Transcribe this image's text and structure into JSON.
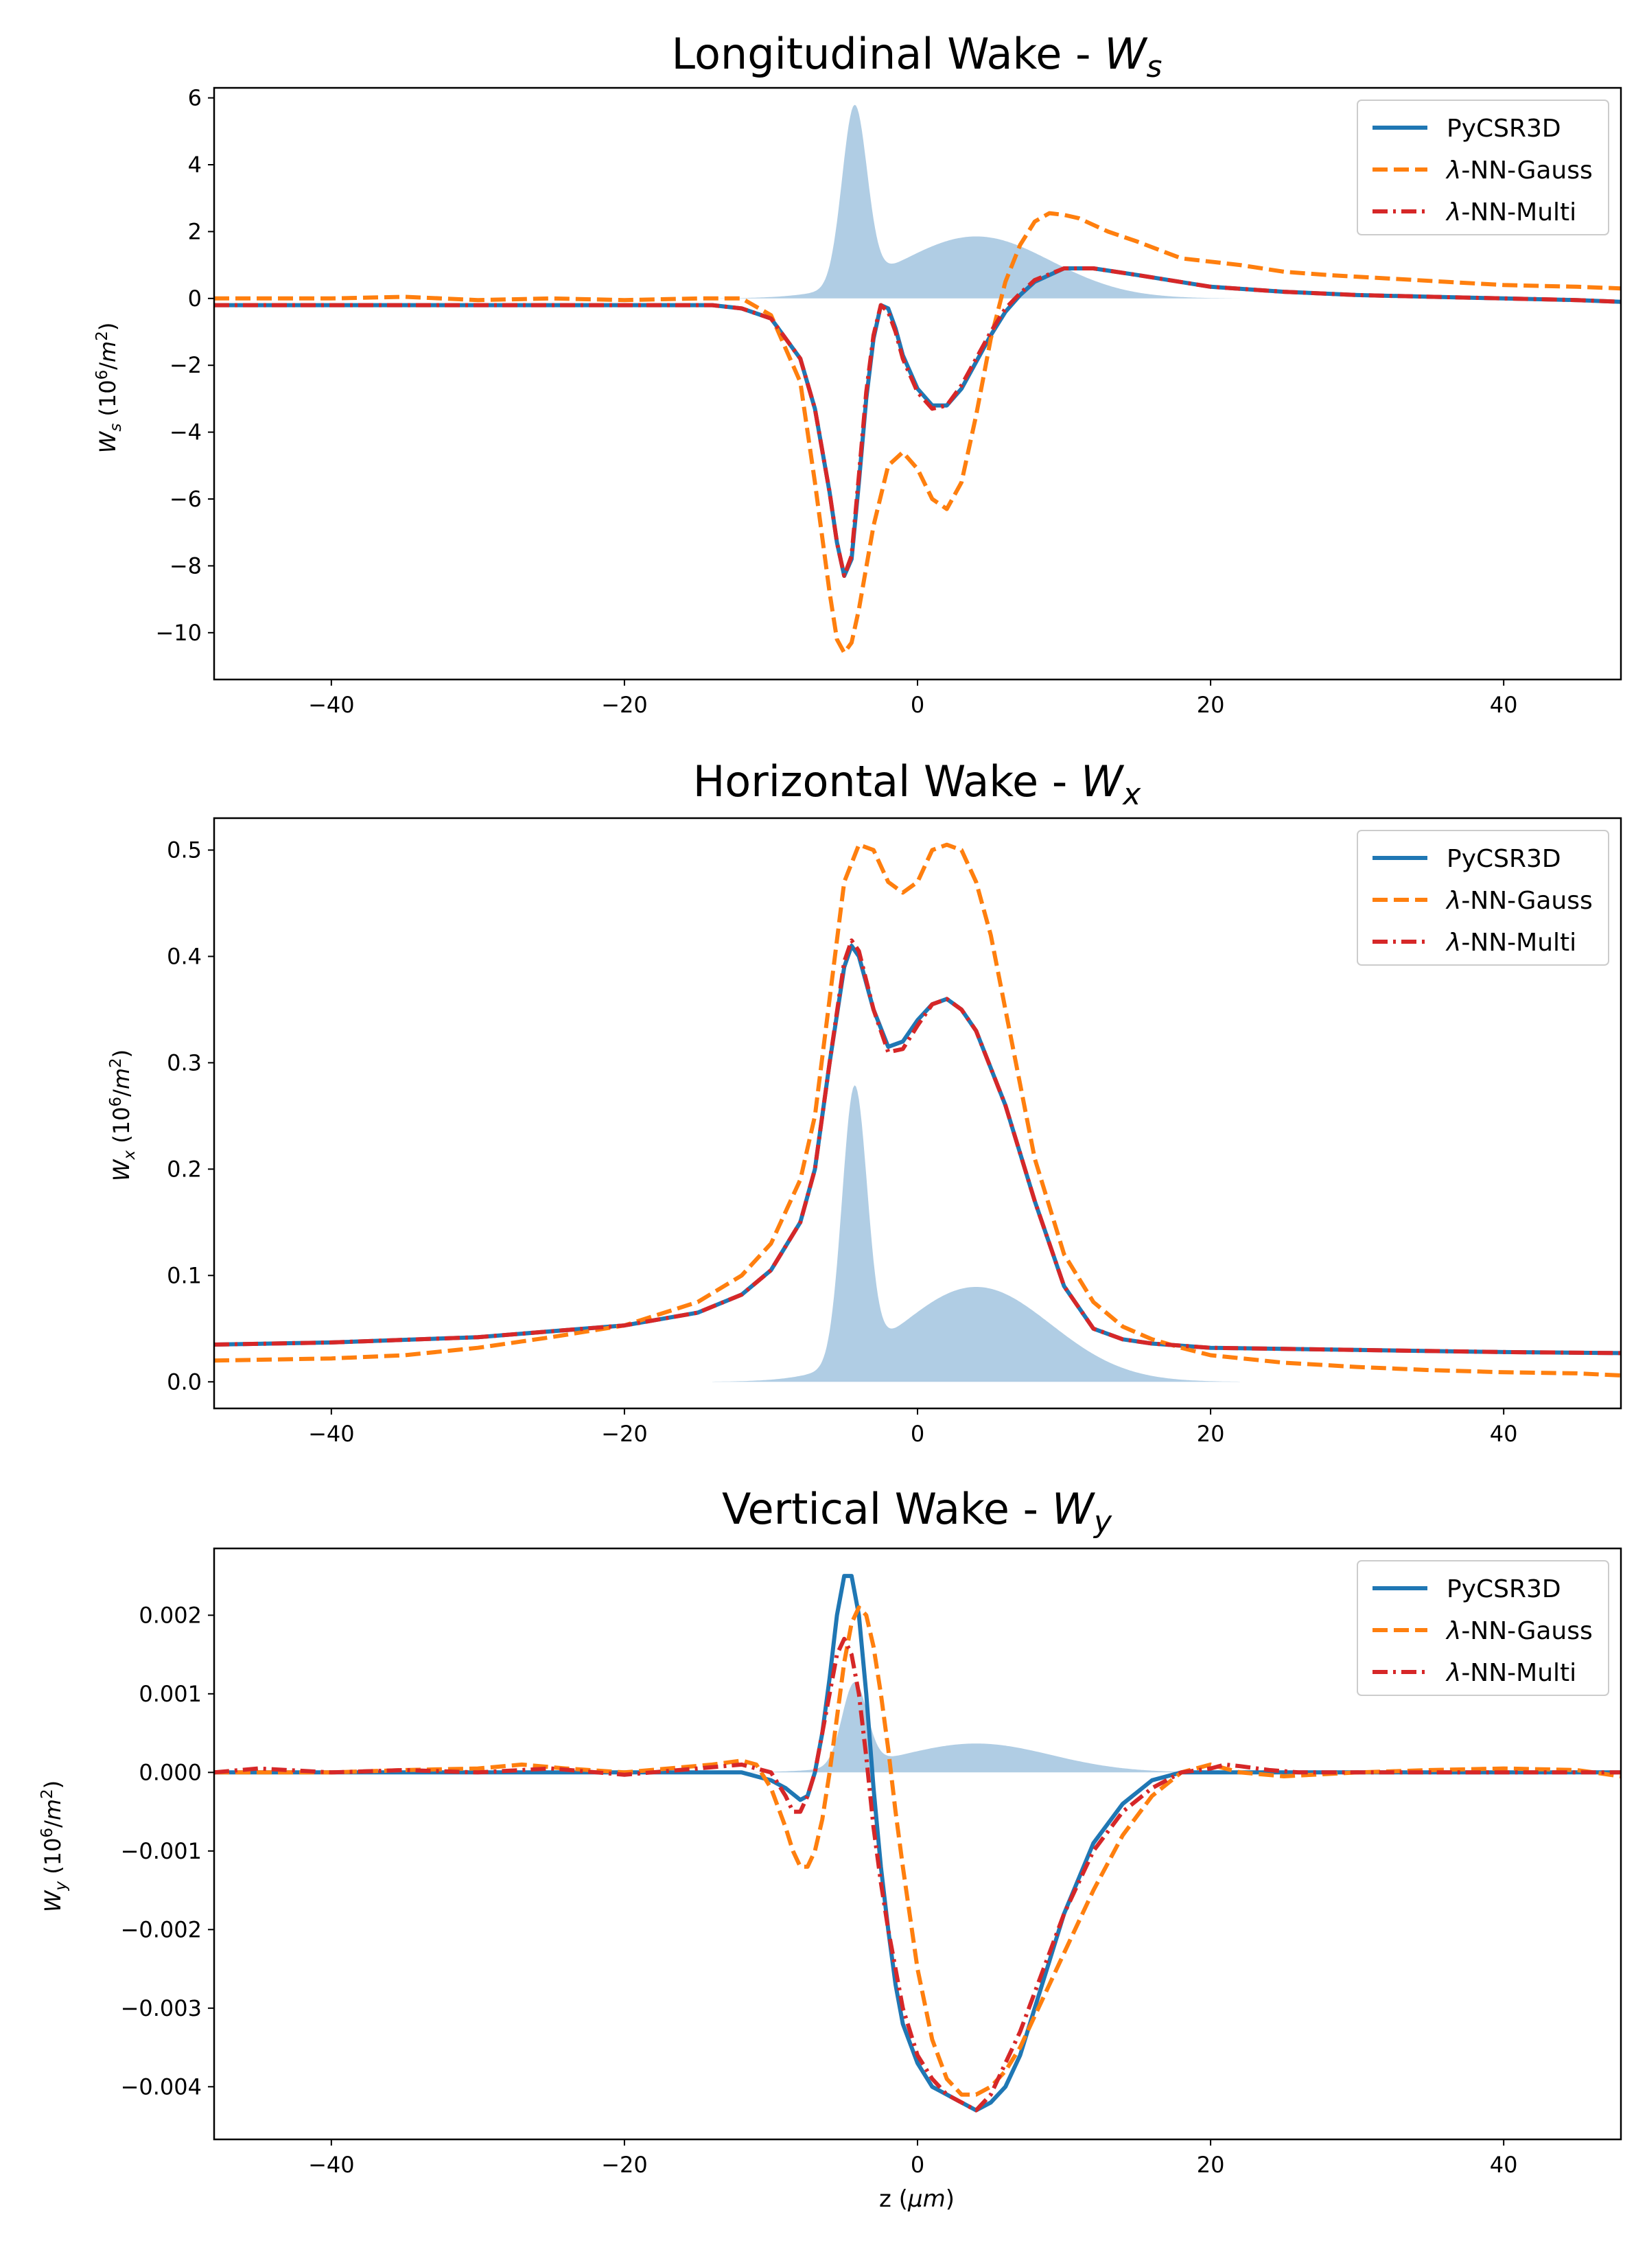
{
  "chart_data": [
    {
      "type": "line",
      "title": "Longitudinal Wake - ",
      "title_symbol": "W",
      "title_sub": "s",
      "xlabel": "",
      "ylabel": "W_s (10^6/m^2)",
      "ylabel_parts": {
        "sym": "W",
        "sub": "s",
        "unit_pre": " (10",
        "sup": "6",
        "unit_mid": "/",
        "unit_m": "m",
        "unit_sup": "2",
        "unit_post": ")"
      },
      "xlim": [
        -48,
        48
      ],
      "ylim": [
        -11.4,
        6.3
      ],
      "xticks": [
        -40,
        -20,
        0,
        20,
        40
      ],
      "xtick_labels": [
        "−40",
        "−20",
        "0",
        "20",
        "40"
      ],
      "yticks": [
        6,
        4,
        2,
        0,
        -2,
        -4,
        -6,
        -8,
        -10
      ],
      "ytick_labels": [
        "6",
        "4",
        "2",
        "0",
        "−2",
        "−4",
        "−6",
        "−8",
        "−10"
      ],
      "legend": {
        "position": "top-right",
        "entries": [
          "PyCSR3D",
          "λ-NN-Gauss",
          "λ-NN-Multi"
        ]
      },
      "profile_scale": 5.3,
      "series": [
        {
          "name": "PyCSR3D",
          "color": "#1f77b4",
          "style": "solid",
          "x": [
            -48,
            -30,
            -20,
            -14,
            -12,
            -10,
            -8,
            -7,
            -6,
            -5.5,
            -5,
            -4.5,
            -4,
            -3.5,
            -3,
            -2.5,
            -2,
            -1.5,
            -1,
            0,
            1,
            2,
            3,
            4,
            5,
            6,
            7,
            8,
            10,
            12,
            15,
            20,
            25,
            30,
            35,
            40,
            45,
            48
          ],
          "y": [
            -0.2,
            -0.2,
            -0.2,
            -0.2,
            -0.3,
            -0.6,
            -1.8,
            -3.3,
            -5.8,
            -7.3,
            -8.3,
            -7.8,
            -5.5,
            -3,
            -1.2,
            -0.2,
            -0.3,
            -0.9,
            -1.7,
            -2.7,
            -3.2,
            -3.2,
            -2.7,
            -1.9,
            -1.1,
            -0.4,
            0.1,
            0.5,
            0.9,
            0.9,
            0.7,
            0.35,
            0.2,
            0.1,
            0.05,
            0,
            -0.05,
            -0.1
          ]
        },
        {
          "name": "λ-NN-Gauss",
          "color": "#ff7f0e",
          "style": "dashed",
          "x": [
            -48,
            -40,
            -35,
            -30,
            -25,
            -20,
            -15,
            -12,
            -10,
            -8,
            -7,
            -6,
            -5.5,
            -5,
            -4.5,
            -4,
            -3,
            -2,
            -1,
            0,
            1,
            2,
            3,
            4,
            5,
            6,
            7,
            8,
            9,
            10,
            11,
            12,
            13,
            15,
            18,
            22,
            25,
            28,
            32,
            36,
            40,
            45,
            48
          ],
          "y": [
            0,
            0,
            0.05,
            -0.05,
            0,
            -0.05,
            0,
            0,
            -0.5,
            -2.5,
            -5.5,
            -8.8,
            -10.2,
            -10.6,
            -10.3,
            -9.3,
            -6.8,
            -5,
            -4.6,
            -5.1,
            -6,
            -6.3,
            -5.5,
            -3.5,
            -1.2,
            0.5,
            1.6,
            2.3,
            2.55,
            2.5,
            2.4,
            2.2,
            2,
            1.7,
            1.2,
            1,
            0.8,
            0.7,
            0.6,
            0.5,
            0.4,
            0.35,
            0.3
          ]
        },
        {
          "name": "λ-NN-Multi",
          "color": "#d62728",
          "style": "dashdot",
          "x": [
            -48,
            -30,
            -20,
            -14,
            -12,
            -10,
            -8,
            -7,
            -6,
            -5.5,
            -5,
            -4.5,
            -4,
            -3.5,
            -3,
            -2.5,
            -2,
            -1.5,
            -1,
            0,
            1,
            2,
            3,
            4,
            5,
            6,
            7,
            8,
            10,
            12,
            15,
            20,
            25,
            30,
            35,
            40,
            45,
            48
          ],
          "y": [
            -0.2,
            -0.2,
            -0.2,
            -0.2,
            -0.3,
            -0.6,
            -1.8,
            -3.3,
            -5.8,
            -7.3,
            -8.3,
            -7.7,
            -5.3,
            -2.8,
            -1.1,
            -0.2,
            -0.4,
            -1,
            -1.8,
            -2.8,
            -3.3,
            -3.2,
            -2.6,
            -1.8,
            -1,
            -0.3,
            0.15,
            0.55,
            0.9,
            0.9,
            0.7,
            0.35,
            0.2,
            0.1,
            0.05,
            0,
            -0.05,
            -0.1
          ]
        }
      ]
    },
    {
      "type": "line",
      "title": "Horizontal Wake - ",
      "title_symbol": "W",
      "title_sub": "x",
      "xlabel": "",
      "ylabel": "W_x (10^6/m^2)",
      "ylabel_parts": {
        "sym": "W",
        "sub": "x",
        "unit_pre": " (10",
        "sup": "6",
        "unit_mid": "/",
        "unit_m": "m",
        "unit_sup": "2",
        "unit_post": ")"
      },
      "xlim": [
        -48,
        48
      ],
      "ylim": [
        -0.025,
        0.53
      ],
      "xticks": [
        -40,
        -20,
        0,
        20,
        40
      ],
      "xtick_labels": [
        "−40",
        "−20",
        "0",
        "20",
        "40"
      ],
      "yticks": [
        0.5,
        0.4,
        0.3,
        0.2,
        0.1,
        0.0
      ],
      "ytick_labels": [
        "0.5",
        "0.4",
        "0.3",
        "0.2",
        "0.1",
        "0.0"
      ],
      "legend": {
        "position": "top-right",
        "entries": [
          "PyCSR3D",
          "λ-NN-Gauss",
          "λ-NN-Multi"
        ]
      },
      "profile_scale": 0.255,
      "series": [
        {
          "name": "PyCSR3D",
          "color": "#1f77b4",
          "style": "solid",
          "x": [
            -48,
            -40,
            -30,
            -20,
            -15,
            -12,
            -10,
            -8,
            -7,
            -6,
            -5,
            -4.5,
            -4,
            -3,
            -2,
            -1,
            0,
            1,
            2,
            3,
            4,
            6,
            8,
            10,
            12,
            14,
            16,
            20,
            30,
            40,
            48
          ],
          "y": [
            0.035,
            0.037,
            0.042,
            0.053,
            0.065,
            0.082,
            0.105,
            0.15,
            0.2,
            0.3,
            0.39,
            0.41,
            0.4,
            0.35,
            0.315,
            0.32,
            0.34,
            0.355,
            0.36,
            0.35,
            0.33,
            0.26,
            0.17,
            0.09,
            0.05,
            0.04,
            0.036,
            0.032,
            0.03,
            0.028,
            0.027
          ]
        },
        {
          "name": "λ-NN-Gauss",
          "color": "#ff7f0e",
          "style": "dashed",
          "x": [
            -48,
            -40,
            -35,
            -30,
            -25,
            -20,
            -15,
            -12,
            -10,
            -8,
            -7,
            -6,
            -5,
            -4,
            -3,
            -2,
            -1,
            0,
            1,
            2,
            3,
            4,
            5,
            6,
            8,
            10,
            12,
            14,
            16,
            18,
            20,
            25,
            30,
            35,
            40,
            45,
            48
          ],
          "y": [
            0.02,
            0.022,
            0.025,
            0.032,
            0.042,
            0.053,
            0.075,
            0.1,
            0.13,
            0.19,
            0.25,
            0.36,
            0.47,
            0.505,
            0.5,
            0.47,
            0.46,
            0.47,
            0.5,
            0.505,
            0.5,
            0.47,
            0.42,
            0.35,
            0.21,
            0.12,
            0.075,
            0.052,
            0.04,
            0.032,
            0.025,
            0.018,
            0.014,
            0.011,
            0.009,
            0.008,
            0.006
          ]
        },
        {
          "name": "λ-NN-Multi",
          "color": "#d62728",
          "style": "dashdot",
          "x": [
            -48,
            -40,
            -30,
            -20,
            -15,
            -12,
            -10,
            -8,
            -7,
            -6,
            -5,
            -4.5,
            -4,
            -3,
            -2,
            -1,
            0,
            1,
            2,
            3,
            4,
            6,
            8,
            10,
            12,
            14,
            16,
            20,
            30,
            40,
            48
          ],
          "y": [
            0.035,
            0.037,
            0.042,
            0.053,
            0.065,
            0.082,
            0.105,
            0.15,
            0.2,
            0.3,
            0.395,
            0.415,
            0.405,
            0.35,
            0.31,
            0.313,
            0.335,
            0.355,
            0.36,
            0.35,
            0.33,
            0.26,
            0.17,
            0.09,
            0.05,
            0.04,
            0.036,
            0.032,
            0.03,
            0.028,
            0.027
          ]
        }
      ]
    },
    {
      "type": "line",
      "title": "Vertical Wake - ",
      "title_symbol": "W",
      "title_sub": "y",
      "xlabel": "z (μm)",
      "xlabel_parts": {
        "pre": "z (",
        "sym": "μm",
        "post": ")"
      },
      "ylabel": "W_y (10^6/m^2)",
      "ylabel_parts": {
        "sym": "W",
        "sub": "y",
        "unit_pre": " (10",
        "sup": "6",
        "unit_mid": "/",
        "unit_m": "m",
        "unit_sup": "2",
        "unit_post": ")"
      },
      "xlim": [
        -48,
        48
      ],
      "ylim": [
        -0.00467,
        0.00285
      ],
      "xticks": [
        -40,
        -20,
        0,
        20,
        40
      ],
      "xtick_labels": [
        "−40",
        "−20",
        "0",
        "20",
        "40"
      ],
      "yticks": [
        0.002,
        0.001,
        0.0,
        -0.001,
        -0.002,
        -0.003,
        -0.004
      ],
      "ytick_labels": [
        "0.002",
        "0.001",
        "0.000",
        "−0.001",
        "−0.002",
        "−0.003",
        "−0.004"
      ],
      "legend": {
        "position": "top-right",
        "entries": [
          "PyCSR3D",
          "λ-NN-Gauss",
          "λ-NN-Multi"
        ]
      },
      "profile_scale": 0.00105,
      "series": [
        {
          "name": "PyCSR3D",
          "color": "#1f77b4",
          "style": "solid",
          "x": [
            -48,
            -30,
            -20,
            -15,
            -12,
            -10,
            -9,
            -8,
            -7.5,
            -7,
            -6.5,
            -6,
            -5.5,
            -5,
            -4.5,
            -4,
            -3.5,
            -3,
            -2.5,
            -2,
            -1.5,
            -1,
            0,
            1,
            2,
            3,
            4,
            5,
            6,
            7,
            8,
            9,
            10,
            12,
            14,
            16,
            18,
            20,
            25,
            30,
            40,
            48
          ],
          "y": [
            0,
            0,
            0,
            0,
            0,
            -0.0001,
            -0.0002,
            -0.00035,
            -0.0003,
            0,
            0.0005,
            0.0012,
            0.002,
            0.0025,
            0.0025,
            0.002,
            0.001,
            -0.0002,
            -0.0012,
            -0.002,
            -0.0027,
            -0.0032,
            -0.0037,
            -0.004,
            -0.0041,
            -0.0042,
            -0.0043,
            -0.0042,
            -0.004,
            -0.0036,
            -0.003,
            -0.0024,
            -0.0018,
            -0.0009,
            -0.0004,
            -0.0001,
            0,
            0,
            0,
            0,
            0,
            0
          ]
        },
        {
          "name": "λ-NN-Gauss",
          "color": "#ff7f0e",
          "style": "dashed",
          "x": [
            -48,
            -40,
            -35,
            -30,
            -27,
            -24,
            -20,
            -17,
            -14,
            -12,
            -11,
            -10,
            -9,
            -8.5,
            -8,
            -7.5,
            -7,
            -6.5,
            -6,
            -5.5,
            -5,
            -4.5,
            -4,
            -3.5,
            -3,
            -2.5,
            -2,
            -1.5,
            -1,
            0,
            1,
            2,
            3,
            4,
            5,
            6,
            7,
            8,
            9,
            10,
            11,
            12,
            14,
            16,
            18,
            20,
            22,
            25,
            30,
            35,
            40,
            45,
            48
          ],
          "y": [
            0,
            0,
            3e-05,
            5e-05,
            0.0001,
            5e-05,
            0,
            5e-05,
            0.0001,
            0.00015,
            0.0001,
            -0.0002,
            -0.0007,
            -0.001,
            -0.0012,
            -0.0012,
            -0.001,
            -0.0006,
            0,
            0.0007,
            0.0014,
            0.0019,
            0.0021,
            0.002,
            0.0016,
            0.001,
            0.0003,
            -0.0005,
            -0.0012,
            -0.0025,
            -0.0034,
            -0.0039,
            -0.0041,
            -0.0041,
            -0.004,
            -0.0038,
            -0.0035,
            -0.0031,
            -0.0027,
            -0.0023,
            -0.0019,
            -0.0015,
            -0.0008,
            -0.0003,
            0,
            0.0001,
            0,
            -5e-05,
            0,
            3e-05,
            5e-05,
            3e-05,
            -5e-05
          ]
        },
        {
          "name": "λ-NN-Multi",
          "color": "#d62728",
          "style": "dashdot",
          "x": [
            -48,
            -45,
            -40,
            -35,
            -30,
            -25,
            -20,
            -15,
            -12,
            -10,
            -9,
            -8.5,
            -8,
            -7.5,
            -7,
            -6.5,
            -6,
            -5.5,
            -5,
            -4.5,
            -4,
            -3.5,
            -3,
            -2.5,
            -2,
            -1.5,
            -1,
            0,
            1,
            2,
            3,
            4,
            5,
            6,
            7,
            8,
            9,
            10,
            12,
            14,
            16,
            18,
            20,
            21,
            22,
            24,
            26,
            30,
            35,
            40,
            45,
            48
          ],
          "y": [
            0,
            5e-05,
            0,
            3e-05,
            0,
            5e-05,
            -3e-05,
            5e-05,
            0.0001,
            0,
            -0.0003,
            -0.0005,
            -0.0005,
            -0.0003,
            0,
            0.0005,
            0.001,
            0.0015,
            0.0017,
            0.0015,
            0.001,
            0.0002,
            -0.0007,
            -0.0014,
            -0.002,
            -0.0025,
            -0.003,
            -0.0036,
            -0.0039,
            -0.0041,
            -0.0042,
            -0.0043,
            -0.0041,
            -0.0037,
            -0.0033,
            -0.0028,
            -0.0023,
            -0.0018,
            -0.001,
            -0.0005,
            -0.0002,
            0,
            5e-05,
            0.0001,
            8e-05,
            3e-05,
            0,
            0,
            0,
            0,
            0,
            0
          ]
        }
      ]
    }
  ],
  "profile": {
    "color": "#b0cde4",
    "spike": {
      "center": -4.3,
      "sigma": 0.85,
      "amp": 1.0
    },
    "bump": {
      "center": 4,
      "sigma": 5.1,
      "amp": 0.35
    }
  }
}
